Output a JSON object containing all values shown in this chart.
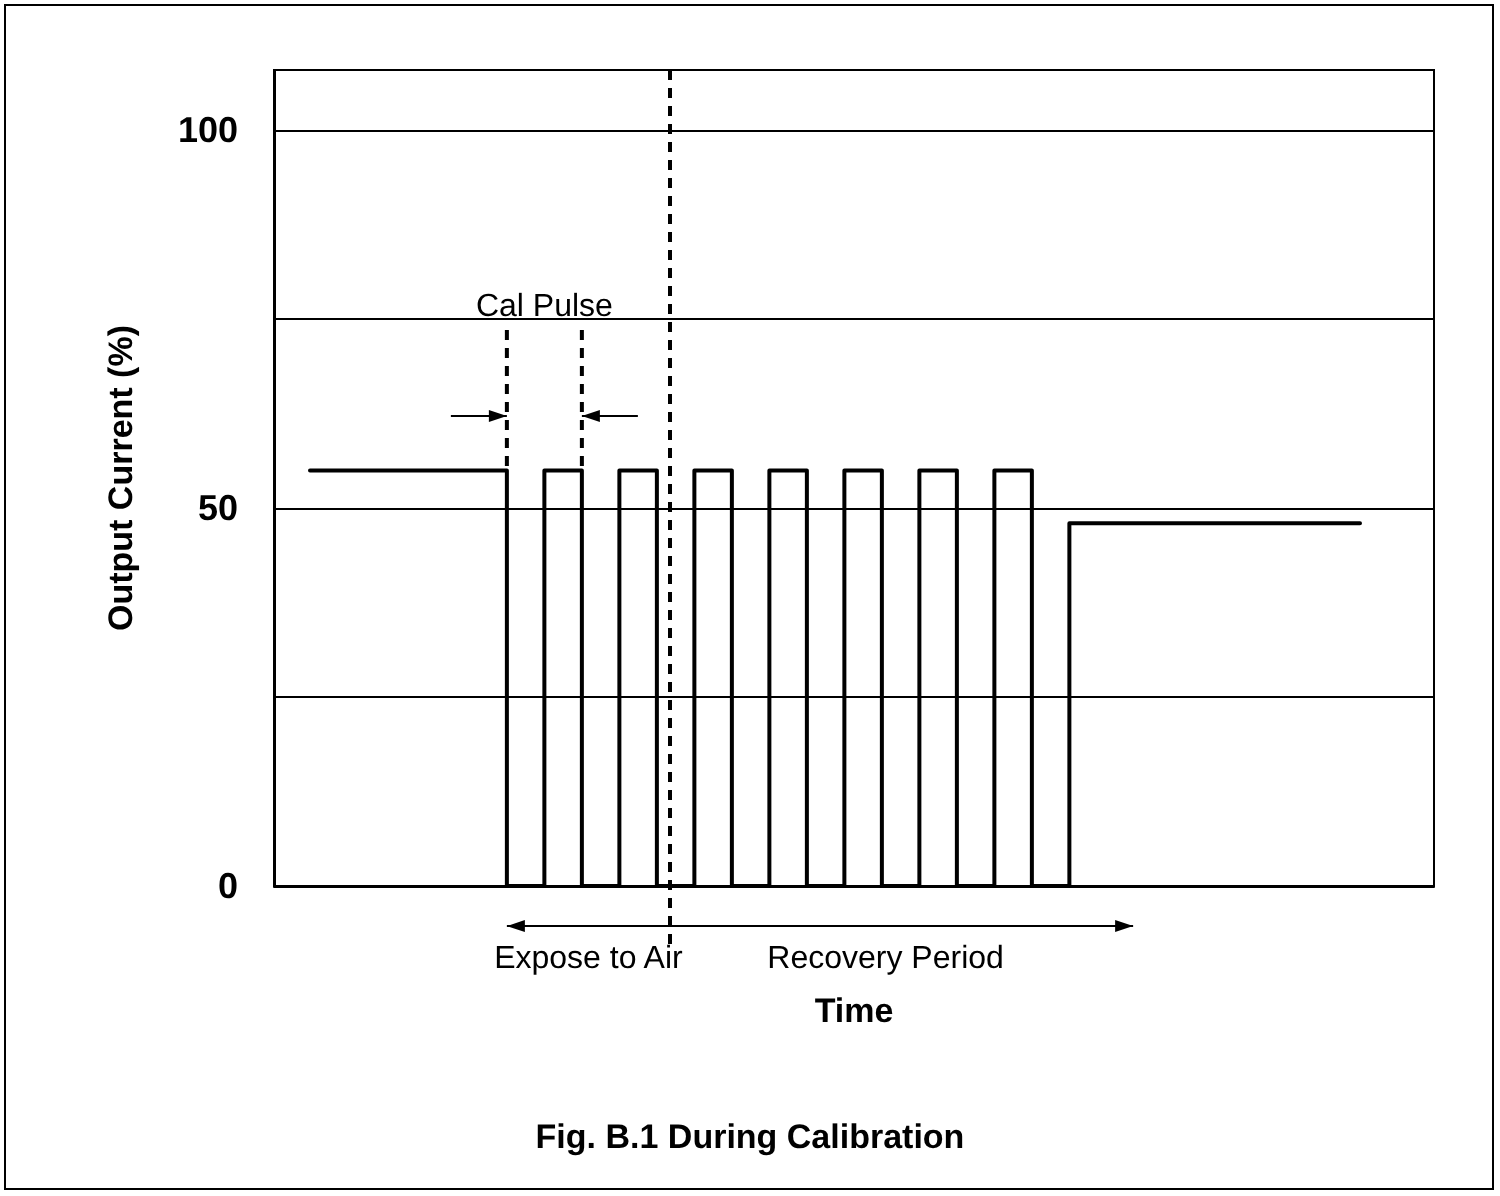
{
  "chart_data": {
    "type": "step",
    "title": "Fig. B.1 During Calibration",
    "xlabel": "Time",
    "ylabel": "Output Current (%)",
    "categories": [
      null,
      null,
      null,
      null,
      null,
      null,
      null,
      null,
      null,
      null,
      null,
      null,
      null,
      null,
      null,
      null,
      null,
      null,
      null,
      null,
      null,
      null,
      null,
      null,
      null,
      null,
      null,
      null,
      null,
      null,
      null,
      null,
      null,
      null,
      null,
      null,
      null,
      null,
      null,
      null,
      null,
      null,
      null,
      null,
      null,
      null,
      null,
      null,
      null,
      null,
      null,
      null,
      null,
      null,
      null,
      null,
      null
    ],
    "series": [
      {
        "color": "#000000",
        "values": [
          55,
          55,
          55,
          55,
          55,
          55,
          55,
          55,
          55,
          55,
          55,
          0,
          0,
          55,
          55,
          0,
          0,
          55,
          55,
          0,
          0,
          55,
          55,
          0,
          0,
          55,
          55,
          0,
          0,
          55,
          55,
          0,
          0,
          55,
          55,
          0,
          0,
          55,
          55,
          0,
          0,
          48,
          48,
          48,
          48,
          48,
          48,
          48,
          48,
          48,
          48,
          48,
          48,
          48,
          48,
          48,
          48
        ]
      }
    ],
    "ylim": [
      0,
      108
    ],
    "yticks": [
      0,
      {
        "value": 25,
        "label": null
      },
      50,
      {
        "value": 75,
        "label": null
      },
      100
    ],
    "grid": "y",
    "tick_labels": "y",
    "marker": "none",
    "line_style": "solid",
    "annotations": [
      "Cal Pulse",
      "Expose to Air",
      "Recovery Period"
    ]
  }
}
